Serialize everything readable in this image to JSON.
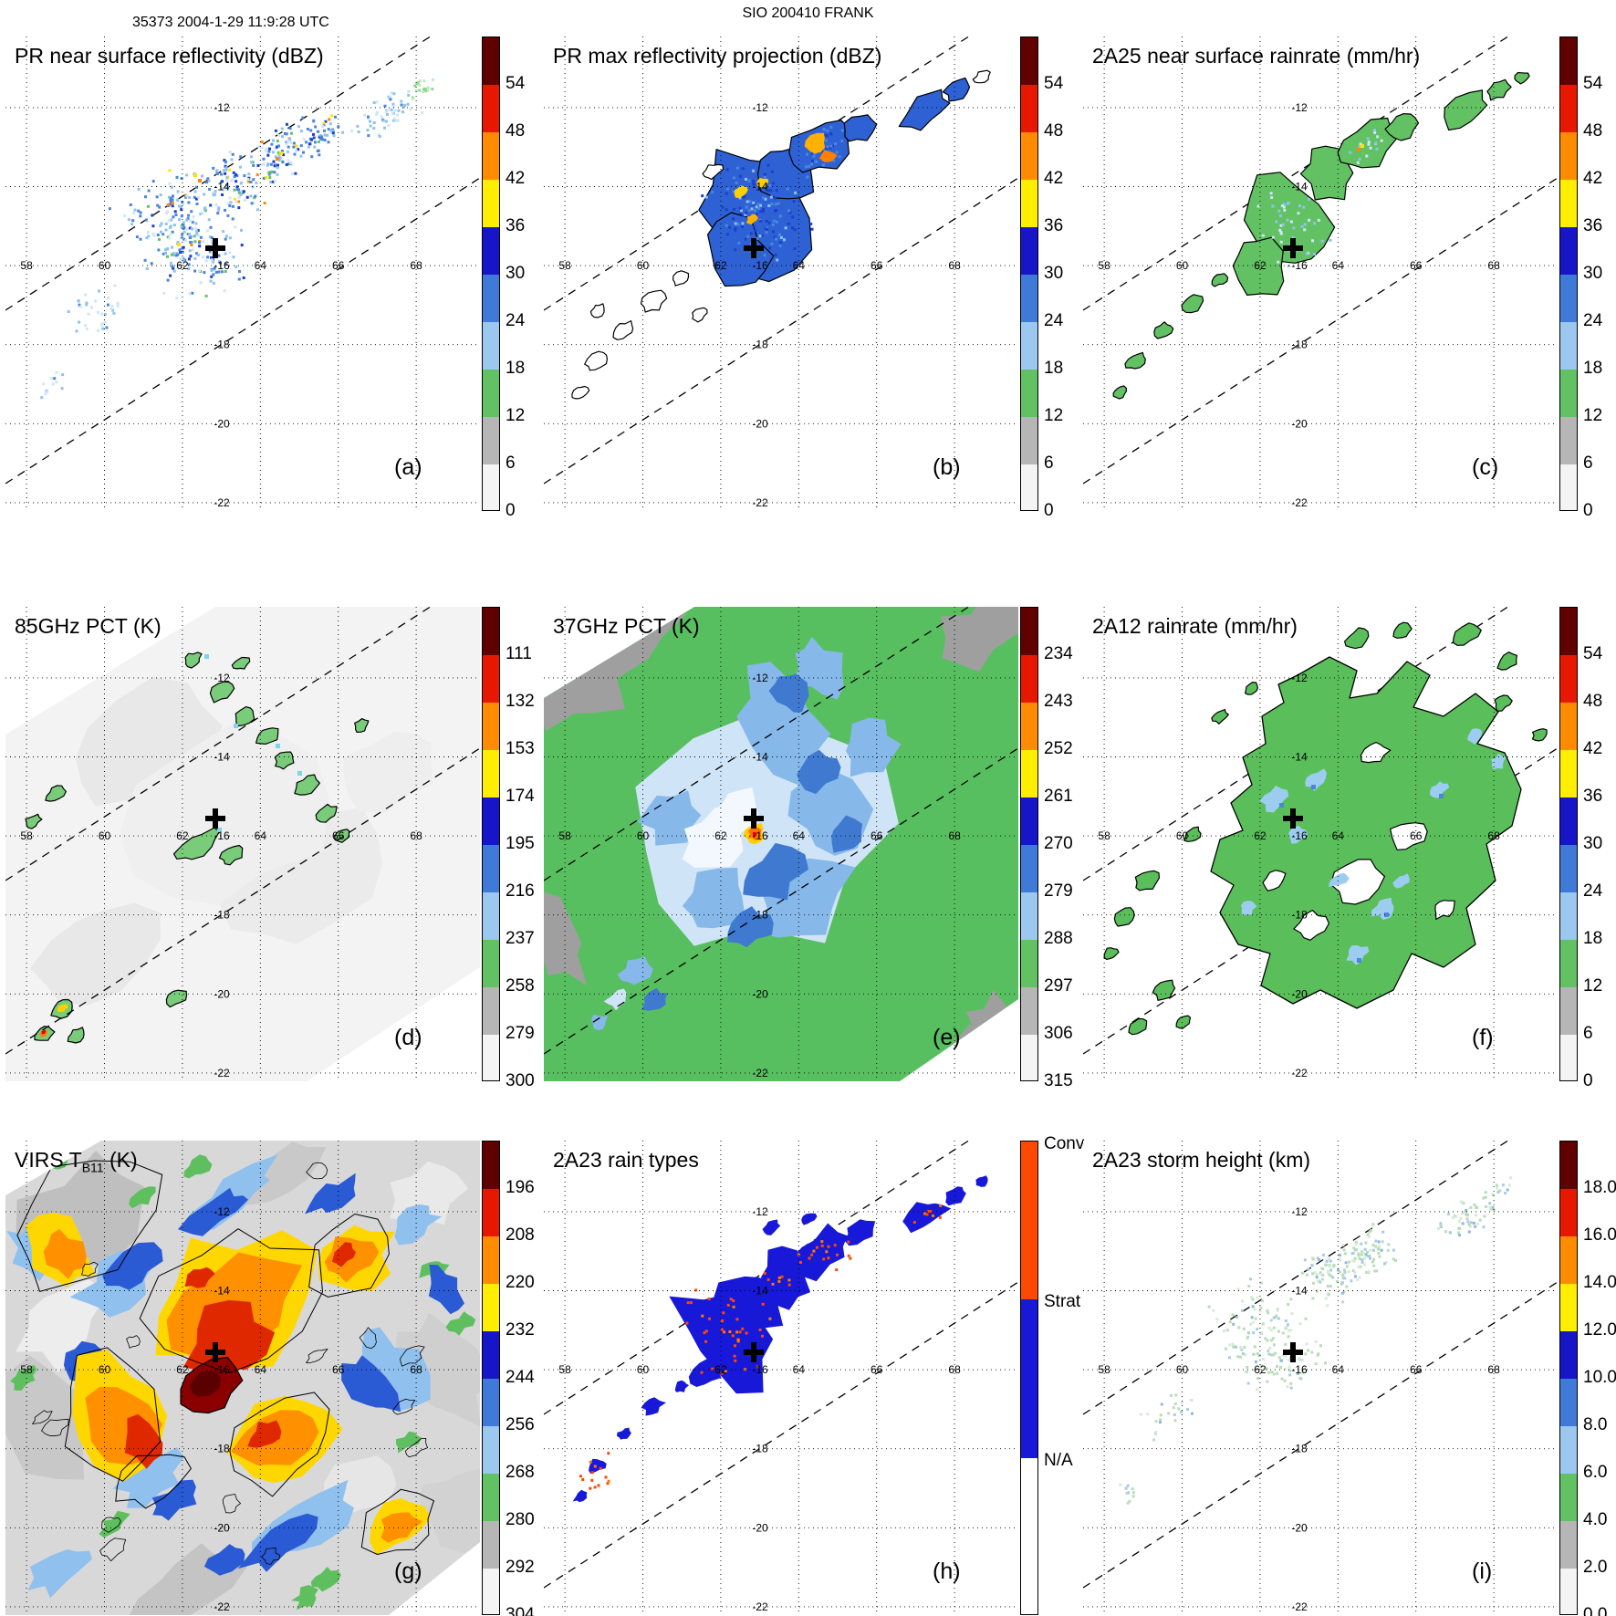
{
  "header": {
    "left": "35373 2004-1-29 11:9:28 UTC",
    "center": "SIO 200410 FRANK"
  },
  "chart_data": {
    "type": "heatmap",
    "figure": "3x3 panel TRMM satellite overpass maps of tropical cyclone FRANK",
    "axes": {
      "lon_ticks": [
        "58",
        "60",
        "62",
        "64",
        "66",
        "68"
      ],
      "lat_ticks": [
        "-12",
        "-14",
        "-16",
        "-18",
        "-20",
        "-22"
      ]
    },
    "annotations": {
      "storm_center_cross": {
        "lon": 62.9,
        "lat": -15.5
      },
      "swath_edges": "dashed parallel lines marking the narrow PR swath running SW to NE"
    },
    "colors": {
      "colormap_top_to_bottom": [
        "#600000",
        "#e81800",
        "#ff8c00",
        "#ffee00",
        "#1616c8",
        "#3f7ad8",
        "#9cc8f0",
        "#62c162",
        "#b6b6b6",
        "#f4f4f4"
      ],
      "rain_type_colors": {
        "Conv": "#ff4800",
        "Strat": "#1818d8",
        "NA": "#ffffff"
      },
      "grid": "#000000",
      "cross": "#000000",
      "background": "#ffffff"
    },
    "colorbars": {
      "dbz": [
        "54",
        "48",
        "42",
        "36",
        "30",
        "24",
        "18",
        "12",
        "6",
        "0"
      ],
      "rainrate": [
        "54",
        "48",
        "42",
        "36",
        "30",
        "24",
        "18",
        "12",
        "6",
        "0"
      ],
      "pct85": [
        "111",
        "132",
        "153",
        "174",
        "195",
        "216",
        "237",
        "258",
        "279",
        "300"
      ],
      "pct37": [
        "234",
        "243",
        "252",
        "261",
        "270",
        "279",
        "288",
        "297",
        "306",
        "315"
      ],
      "tb11": [
        "196",
        "208",
        "220",
        "232",
        "244",
        "256",
        "268",
        "280",
        "292",
        "304"
      ],
      "height_km": [
        "18.0",
        "16.0",
        "14.0",
        "12.0",
        "10.0",
        "8.0",
        "6.0",
        "4.0",
        "2.0",
        "0.0"
      ],
      "raintype": [
        "Conv",
        "Strat",
        "N/A"
      ]
    },
    "panels": [
      {
        "key": "a",
        "letter": "(a)",
        "title_pre": "PR near surface reflectivity (dBZ)",
        "title_sub": "",
        "title_post": "",
        "cbar": "dbz",
        "content": "Scattered radar echoes 18-45 dBZ in a SW-NE band inside the PR swath; storm center cross near 63E 15.5S"
      },
      {
        "key": "b",
        "letter": "(b)",
        "title_pre": "PR max reflectivity projection (dBZ)",
        "title_sub": "",
        "title_post": "",
        "cbar": "dbz",
        "content": "Black-outlined max reflectivity cells, mostly 24-36 dBZ with small 36-48 dBZ cores"
      },
      {
        "key": "c",
        "letter": "(c)",
        "title_pre": "2A25 near surface rainrate (mm/hr)",
        "title_sub": "",
        "title_post": "",
        "cbar": "rainrate",
        "content": "Outlined near-surface rain areas mostly below 12 mm/hr (green) with isolated heavier blue cells and one orange pixel"
      },
      {
        "key": "d",
        "letter": "(d)",
        "title_pre": "85GHz PCT (K)",
        "title_sub": "",
        "title_post": "",
        "cbar": "pct85",
        "content": "Warm 280-300 K background over wide TMI swath with scattered 216-237 K (green) depressions along rainbands and small cold minima in the SW"
      },
      {
        "key": "e",
        "letter": "(e)",
        "title_pre": "37GHz PCT (K)",
        "title_sub": "",
        "title_post": "",
        "cbar": "pct37",
        "content": "Green ~288 K background with blue 261-279 K spiral around the storm center and a small warm orange eye dot at the cross"
      },
      {
        "key": "f",
        "letter": "(f)",
        "title_pre": "2A12 rainrate (mm/hr)",
        "title_sub": "",
        "title_post": "",
        "cbar": "rainrate",
        "content": "Broad light rain shield below 6 mm/hr (green) with embedded 6-18 mm/hr blue patches and white holes"
      },
      {
        "key": "g",
        "letter": "(g)",
        "title_pre": "VIRS T",
        "title_sub": "B11",
        "title_post": " (K)",
        "cbar": "tb11",
        "content": "Cold IR cloud shield 196-232 K with dark ~196 K eye region, yellow-orange anvils, blue fringes and warm gray clear slots 280-304 K"
      },
      {
        "key": "h",
        "letter": "(h)",
        "title_pre": "2A23 rain types",
        "title_sub": "",
        "title_post": "",
        "cbar": "raintype",
        "content": "Rain type classification in PR swath: mostly stratiform (blue) with scattered convective (orange) pixels"
      },
      {
        "key": "i",
        "letter": "(i)",
        "title_pre": "2A23 storm height (km)",
        "title_sub": "",
        "title_post": "",
        "cbar": "height_km",
        "content": "Storm heights mostly 4-8 km (pale green) with isolated 8-12 km blue tops inside the PR swath"
      }
    ]
  }
}
